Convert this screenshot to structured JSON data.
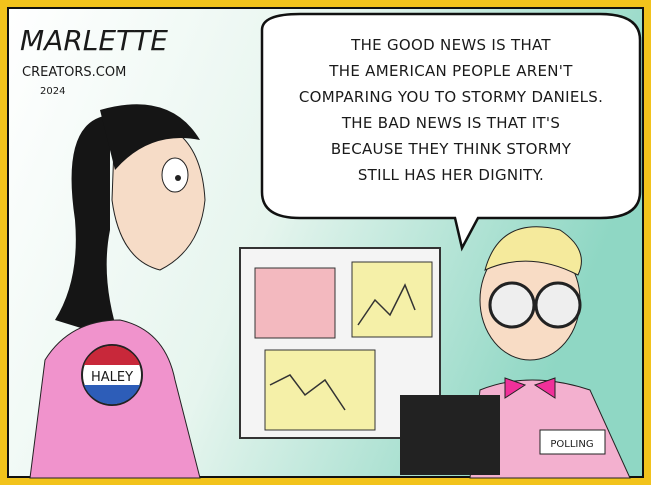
{
  "signature": {
    "artist": "MARLETTE",
    "syndicate": "CREATORS.COM",
    "year": "2024"
  },
  "speech_bubble": {
    "lines": [
      "THE GOOD NEWS IS THAT",
      "THE AMERICAN PEOPLE AREN'T",
      "COMPARING YOU TO STORMY DANIELS.",
      "THE BAD NEWS IS THAT IT'S",
      "BECAUSE THEY THINK STORMY",
      "STILL HAS HER DIGNITY."
    ]
  },
  "button_label": "HALEY",
  "badge_label": "POLLING"
}
